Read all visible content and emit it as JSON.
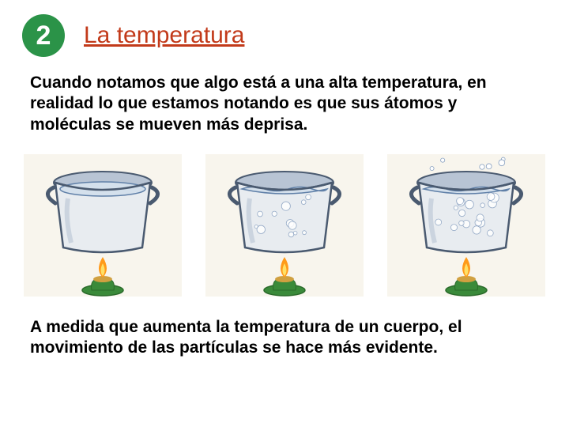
{
  "header": {
    "number": "2",
    "title": "La temperatura",
    "badge_bg": "#2b9348",
    "badge_fg": "#ffffff",
    "title_color": "#c23a1a"
  },
  "paragraph1": "Cuando notamos que algo está a una alta temperatura, en realidad lo que estamos notando es que sus átomos y moléculas se mueven más deprisa.",
  "paragraph2": "A medida que aumenta la temperatura de un cuerpo, el movimiento de las partículas se hace más evidente.",
  "text_color": "#000000",
  "illustration": {
    "pot_fill": "#e8ecf0",
    "pot_stroke": "#4a5a70",
    "pot_shade": "#b8c4d4",
    "water_fill": "#d4e0ec",
    "water_stroke": "#6080a8",
    "bubble_fill": "#ffffff",
    "bubble_stroke": "#88a0c0",
    "flame_outer": "#ff9a1a",
    "flame_inner": "#ffe066",
    "candle_base": "#3a8a3a",
    "candle_wax": "#d0a040",
    "backdrop": "#f8f5ed",
    "pots": [
      {
        "bubbles": 0,
        "splash": 0
      },
      {
        "bubbles": 12,
        "splash": 0
      },
      {
        "bubbles": 18,
        "splash": 6
      }
    ]
  }
}
